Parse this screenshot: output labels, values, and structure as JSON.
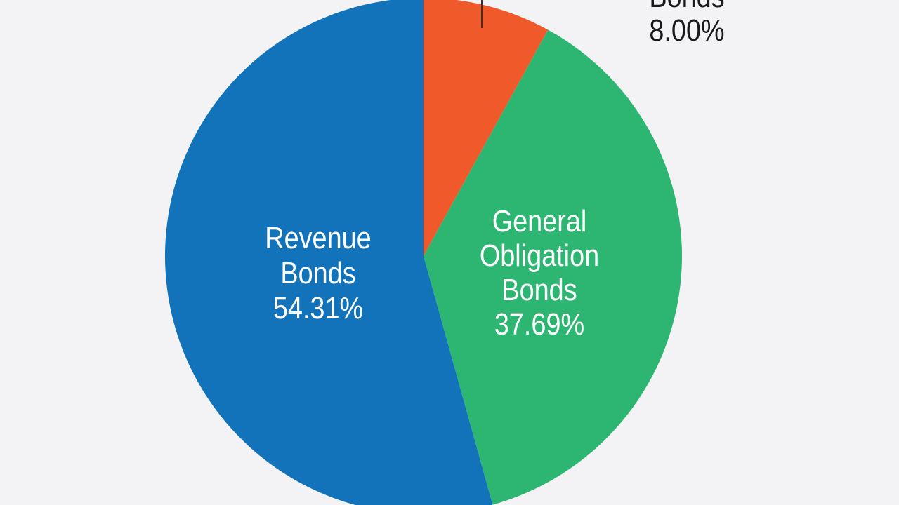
{
  "chart_data": {
    "type": "pie",
    "slices": [
      {
        "name": "Bonds",
        "value": 8.0,
        "label_lines": [
          "Bonds"
        ],
        "value_label": "8.00%",
        "color": "#f05a2a",
        "label_color": "#1a1a1a"
      },
      {
        "name": "General Obligation Bonds",
        "value": 37.69,
        "label_lines": [
          "General",
          "Obligation",
          "Bonds"
        ],
        "value_label": "37.69%",
        "color": "#2db672",
        "label_color": "#ffffff"
      },
      {
        "name": "Revenue Bonds",
        "value": 54.31,
        "label_lines": [
          "Revenue",
          "Bonds"
        ],
        "value_label": "54.31%",
        "color": "#1273bb",
        "label_color": "#ffffff"
      }
    ],
    "start_angle_deg": 0,
    "direction": "clockwise",
    "legend": "none"
  },
  "colors": {
    "background": "#f3f3f5",
    "leader_line": "#333333"
  }
}
